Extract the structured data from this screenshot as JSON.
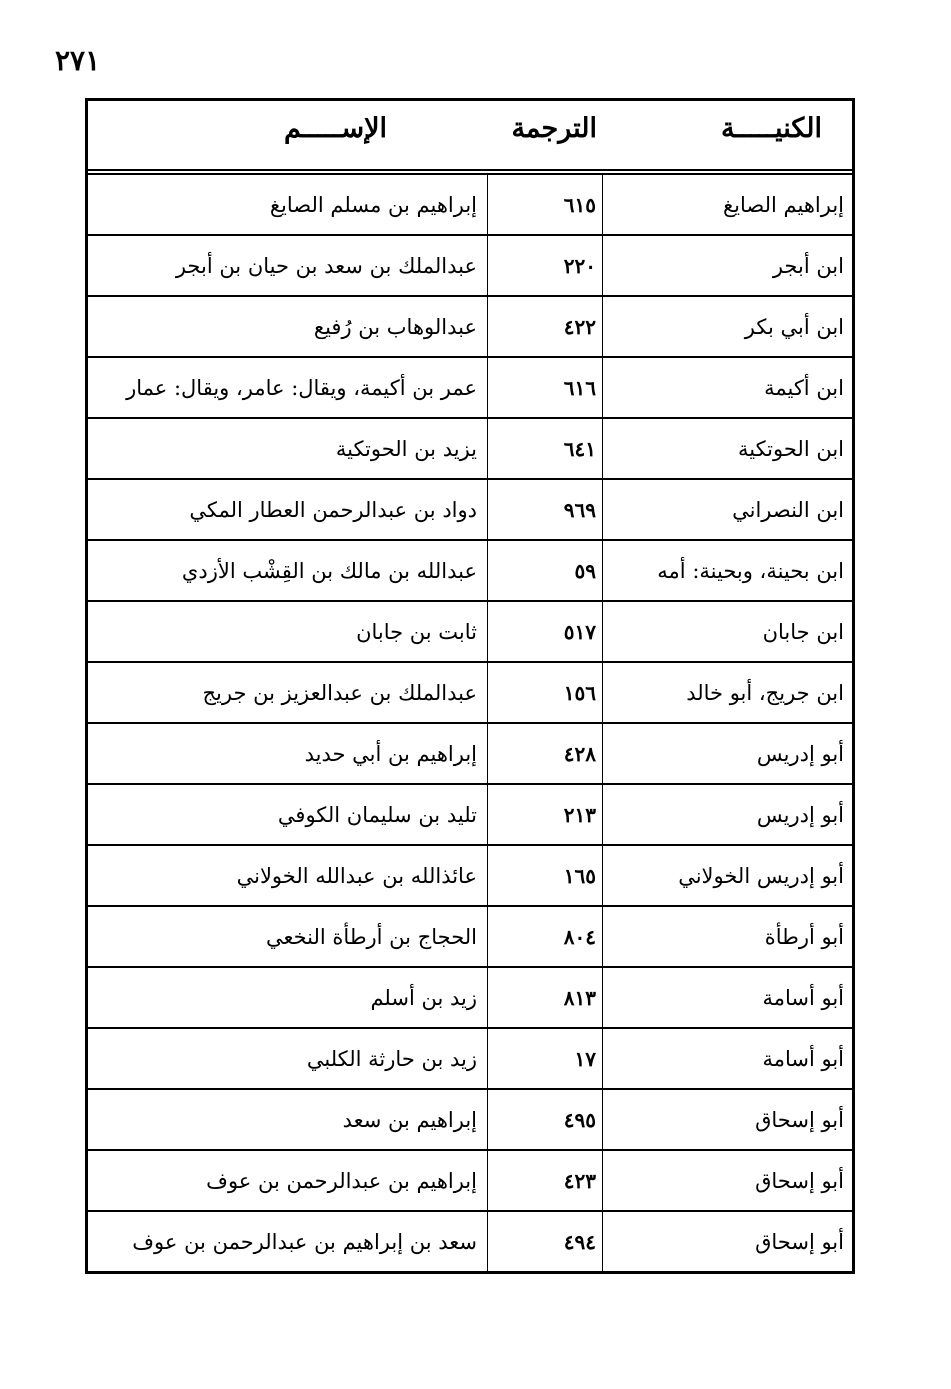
{
  "page_number": "٢٧١",
  "headers": {
    "kunya": "الكنيـــــة",
    "translation": "الترجمة",
    "name": "الإســـــم"
  },
  "rows": [
    {
      "kunya": "إبراهيم الصايغ",
      "num": "٦١٥",
      "name": "إبراهيم بن مسلم الصايغ"
    },
    {
      "kunya": "ابن أبجر",
      "num": "٢٢٠",
      "name": "عبدالملك بن سعد بن حيان بن أبجر"
    },
    {
      "kunya": "ابن أبي بكر",
      "num": "٤٢٢",
      "name": "عبدالوهاب بن رُفيع"
    },
    {
      "kunya": "ابن أكيمة",
      "num": "٦١٦",
      "name": "عمر بن أكيمة، ويقال: عامر، ويقال: عمار"
    },
    {
      "kunya": "ابن الحوتكية",
      "num": "٦٤١",
      "name": "يزيد بن الحوتكية"
    },
    {
      "kunya": "ابن النصراني",
      "num": "٩٦٩",
      "name": "دواد بن عبدالرحمن العطار المكي"
    },
    {
      "kunya": "ابن بحينة، وبحينة: أمه",
      "num": "٥٩",
      "name": "عبدالله بن مالك بن القِشْب الأزدي"
    },
    {
      "kunya": "ابن جابان",
      "num": "٥١٧",
      "name": "ثابت بن جابان"
    },
    {
      "kunya": "ابن جريج، أبو خالد",
      "num": "١٥٦",
      "name": "عبدالملك بن عبدالعزيز بن جريج"
    },
    {
      "kunya": "أبو إدريس",
      "num": "٤٢٨",
      "name": "إبراهيم بن أبي حديد"
    },
    {
      "kunya": "أبو إدريس",
      "num": "٢١٣",
      "name": "تليد بن سليمان الكوفي"
    },
    {
      "kunya": "أبو إدريس الخولاني",
      "num": "١٦٥",
      "name": "عائذالله بن عبدالله الخولاني"
    },
    {
      "kunya": "أبو أرطأة",
      "num": "٨٠٤",
      "name": "الحجاج بن أرطأة النخعي"
    },
    {
      "kunya": "أبو أسامة",
      "num": "٨١٣",
      "name": "زيد بن أسلم"
    },
    {
      "kunya": "أبو أسامة",
      "num": "١٧",
      "name": "زيد بن حارثة الكلبي"
    },
    {
      "kunya": "أبو إسحاق",
      "num": "٤٩٥",
      "name": "إبراهيم بن سعد"
    },
    {
      "kunya": "أبو إسحاق",
      "num": "٤٢٣",
      "name": "إبراهيم بن عبدالرحمن بن عوف"
    },
    {
      "kunya": "أبو إسحاق",
      "num": "٤٩٤",
      "name": "سعد بن إبراهيم بن عبدالرحمن بن عوف"
    }
  ]
}
